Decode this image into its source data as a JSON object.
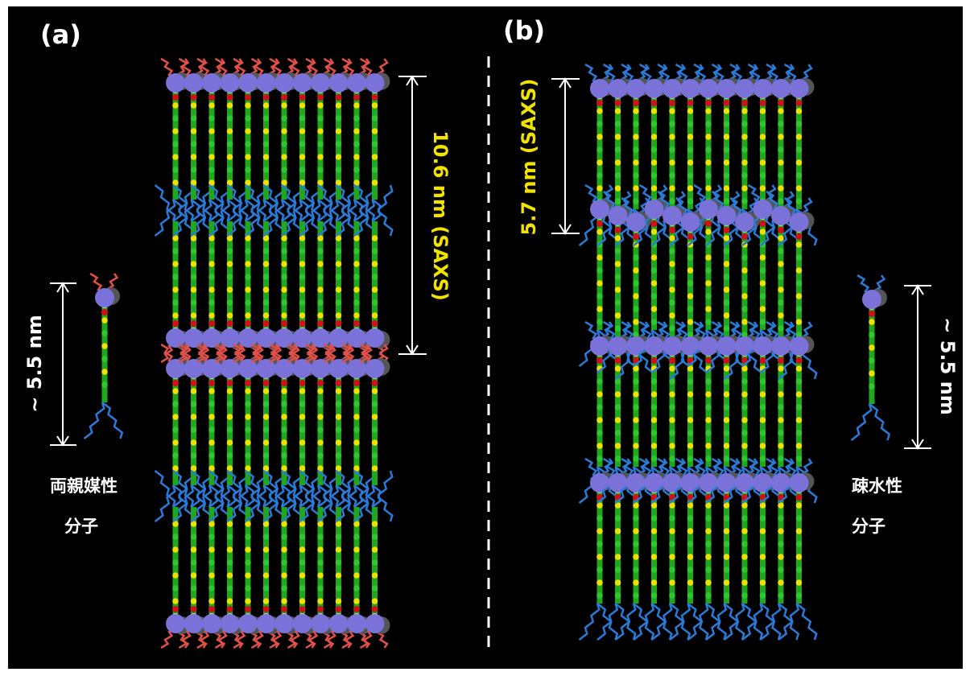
{
  "panels": [
    {
      "label": "(a)",
      "spacing": "10.6 nm (SAXS)",
      "molecule_length": "~ 5.5 nm",
      "molecule_type": [
        "両親媒性",
        "分子"
      ]
    },
    {
      "label": "(b)",
      "spacing": "5.7 nm (SAXS)",
      "molecule_length": "~ 5.5 nm",
      "molecule_type": [
        "疎水性",
        "分子"
      ]
    }
  ]
}
